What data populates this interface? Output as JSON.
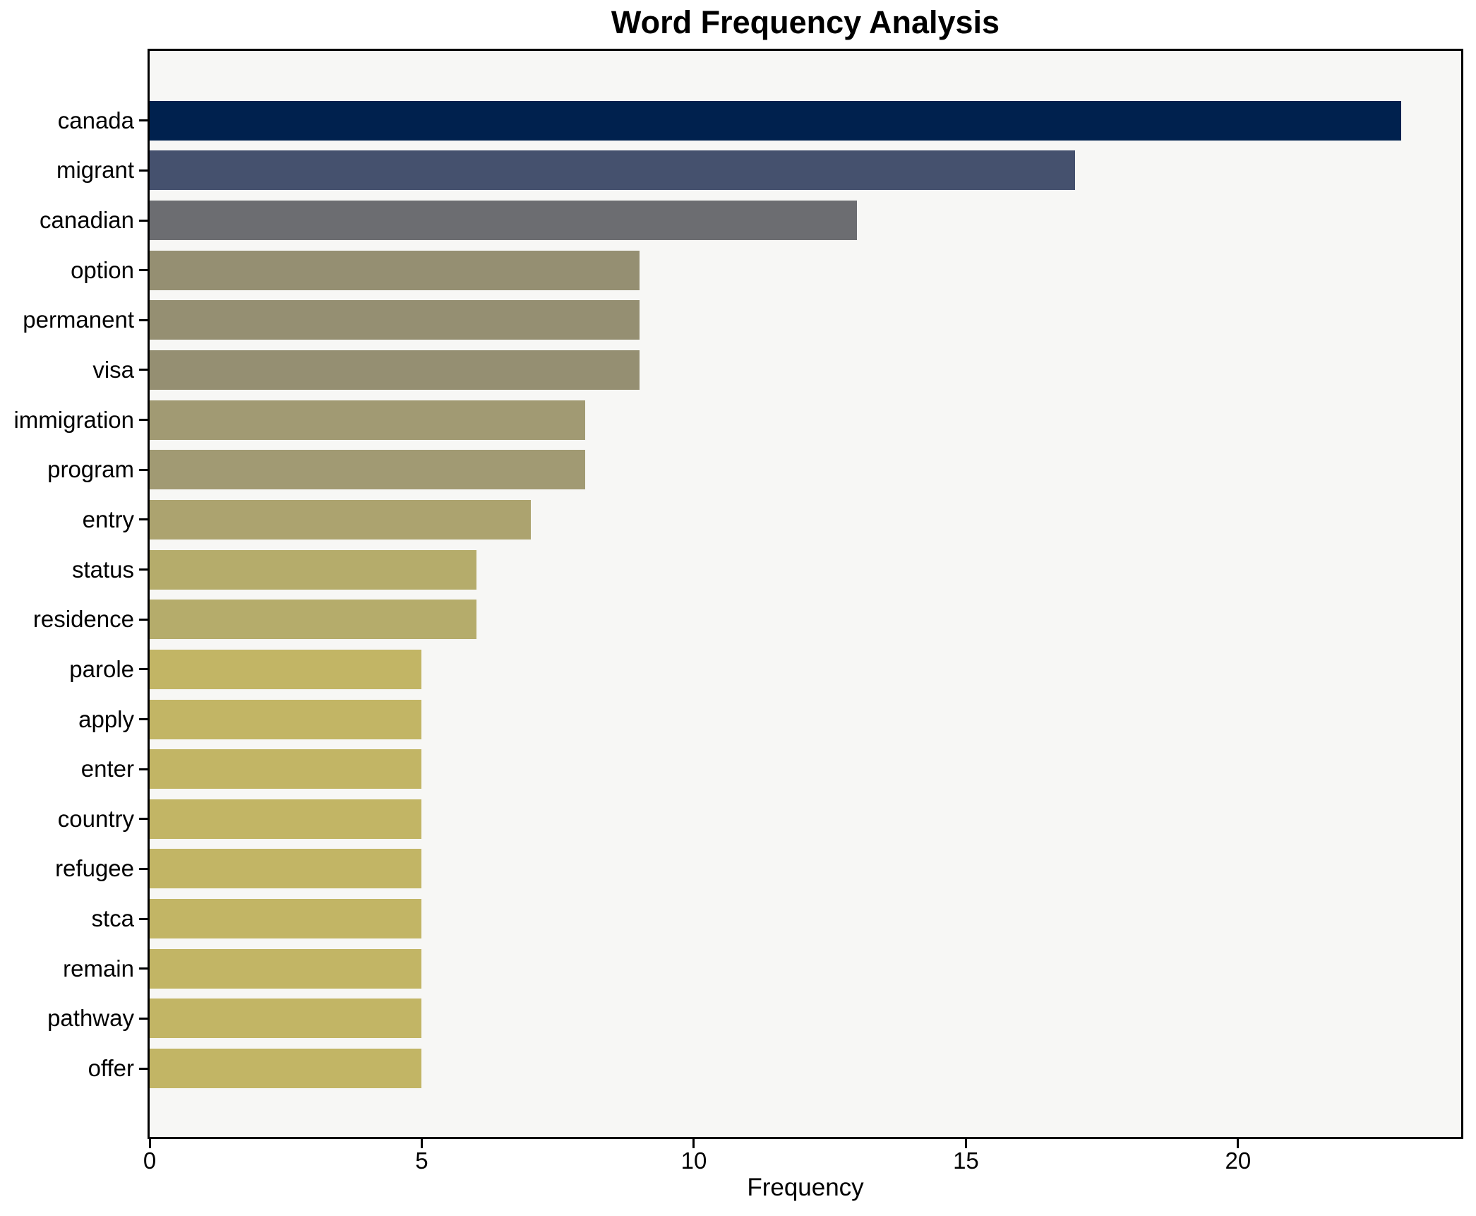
{
  "title": "Word Frequency Analysis",
  "xlabel": "Frequency",
  "chart_data": {
    "type": "bar",
    "orientation": "horizontal",
    "title": "Word Frequency Analysis",
    "xlabel": "Frequency",
    "ylabel": "",
    "categories": [
      "canada",
      "migrant",
      "canadian",
      "option",
      "permanent",
      "visa",
      "immigration",
      "program",
      "entry",
      "status",
      "residence",
      "parole",
      "apply",
      "enter",
      "country",
      "refugee",
      "stca",
      "remain",
      "pathway",
      "offer"
    ],
    "values": [
      23,
      17,
      13,
      9,
      9,
      9,
      8,
      8,
      7,
      6,
      6,
      5,
      5,
      5,
      5,
      5,
      5,
      5,
      5,
      5
    ],
    "bar_colors": [
      "#00214e",
      "#45516e",
      "#6c6d71",
      "#958f72",
      "#958f72",
      "#958f72",
      "#a19a73",
      "#a19a73",
      "#aca36f",
      "#b5ac6b",
      "#b5ac6b",
      "#c2b565",
      "#c2b565",
      "#c2b565",
      "#c2b565",
      "#c2b565",
      "#c2b565",
      "#c2b565",
      "#c2b565",
      "#c2b565"
    ],
    "x_ticks": [
      0,
      5,
      10,
      15,
      20
    ],
    "xlim": [
      0,
      24.1
    ],
    "grid": false,
    "legend": null,
    "colormap": "cividis-reversed-by-value",
    "plot_background": "#f7f7f5",
    "figure_background": "#ffffff",
    "spine_color": "#000000",
    "text_color": "#000000"
  }
}
